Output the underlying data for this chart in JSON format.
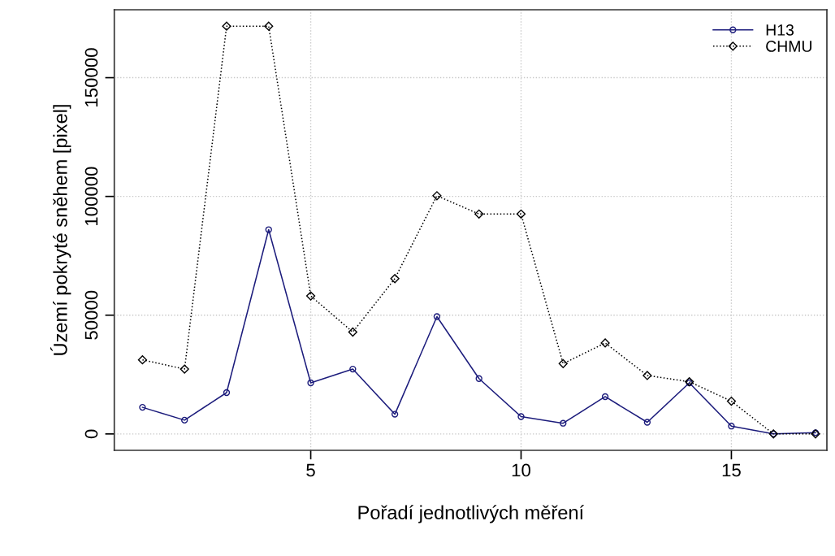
{
  "chart_data": {
    "type": "line",
    "xlabel": "Pořadí jednotlivých měření",
    "ylabel": "Území pokryté sněhem [pixel]",
    "x": [
      1,
      2,
      3,
      4,
      5,
      6,
      7,
      8,
      9,
      10,
      11,
      12,
      13,
      14,
      15,
      16,
      17
    ],
    "series": [
      {
        "name": "H13",
        "color": "#1c1c7c",
        "marker": "circle",
        "line_style": "solid",
        "values": [
          11200,
          5800,
          17400,
          86000,
          21500,
          27300,
          8300,
          49400,
          23300,
          7300,
          4500,
          15700,
          4900,
          21500,
          3300,
          0,
          500
        ]
      },
      {
        "name": "CHMU",
        "color": "#000000",
        "marker": "diamond",
        "line_style": "dotted",
        "values": [
          31200,
          27300,
          171700,
          171700,
          58100,
          42900,
          65400,
          100300,
          92600,
          92600,
          29600,
          38300,
          24600,
          22000,
          13800,
          0,
          0
        ]
      }
    ],
    "xlim": [
      0.33,
      17.27
    ],
    "xticks": [
      5,
      10,
      15
    ],
    "ylim": [
      -6900,
      178600
    ],
    "yticks": [
      0,
      50000,
      100000,
      150000
    ],
    "grid": true,
    "legend": "top right"
  }
}
